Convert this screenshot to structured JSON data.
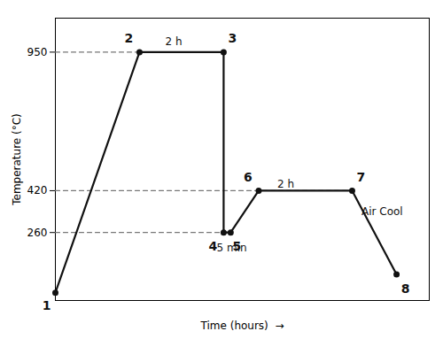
{
  "chart_data": {
    "type": "line",
    "x": [
      0.0,
      1.8,
      3.6,
      3.6,
      3.75,
      4.35,
      6.35,
      7.3
    ],
    "values": [
      30,
      950,
      950,
      260,
      260,
      420,
      420,
      100
    ],
    "point_labels": [
      "1",
      "2",
      "3",
      "4",
      "5",
      "6",
      "7",
      "8"
    ],
    "color": "#111111",
    "marker": "circle",
    "reference_lines": [
      {
        "y": 950,
        "x_start": 0.0,
        "x_end": 3.6
      },
      {
        "y": 420,
        "x_start": 0.0,
        "x_end": 6.35
      },
      {
        "y": 260,
        "x_start": 0.0,
        "x_end": 3.75
      }
    ],
    "annotations": [
      {
        "text": "2 h",
        "x": 2.35,
        "y": 990
      },
      {
        "text": "5 min",
        "x": 3.45,
        "y": 200
      },
      {
        "text": "2 h",
        "x": 4.75,
        "y": 445
      },
      {
        "text": "Air Cool",
        "x": 6.55,
        "y": 340
      }
    ],
    "xlabel": "Time (hours)  →",
    "ylabel": "Temperature (°C)",
    "xlim": [
      0.0,
      8.0
    ],
    "ylim": [
      0,
      1080
    ],
    "xticks": [],
    "yticks": [
      260,
      420,
      950
    ],
    "tick_labels": "y",
    "grid": false
  }
}
